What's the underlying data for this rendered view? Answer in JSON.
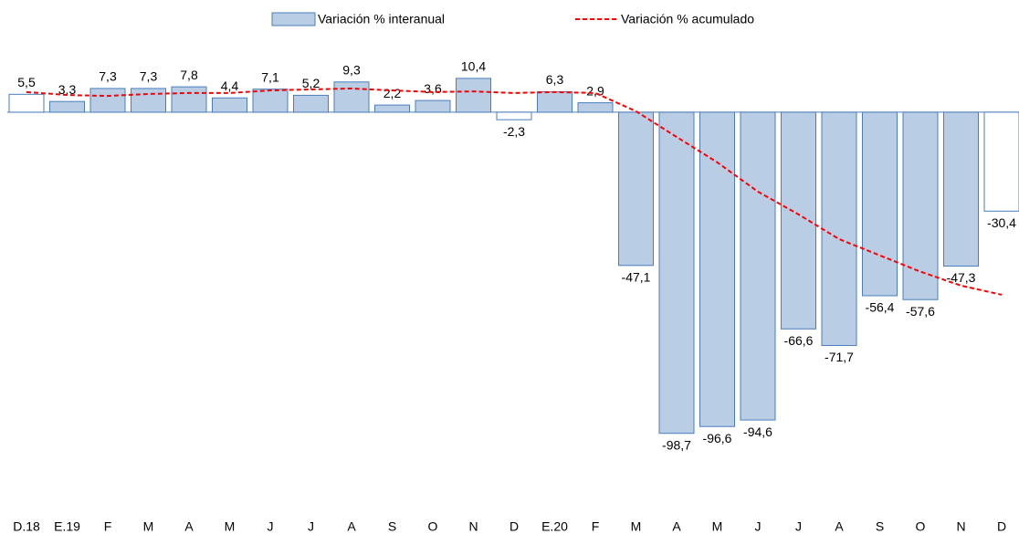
{
  "chart_data": {
    "type": "bar",
    "categories": [
      "D.18",
      "E.19",
      "F",
      "M",
      "A",
      "M",
      "J",
      "J",
      "A",
      "S",
      "O",
      "N",
      "D",
      "E.20",
      "F",
      "M",
      "A",
      "M",
      "J",
      "J",
      "A",
      "S",
      "O",
      "N",
      "D"
    ],
    "series": [
      {
        "name": "Variación % interanual",
        "type": "bar",
        "color": "#b9cde5",
        "edge_color": "#4a7ebb",
        "point_colors": [
          "#ffffff",
          "#b9cde5",
          "#b9cde5",
          "#b9cde5",
          "#b9cde5",
          "#b9cde5",
          "#b9cde5",
          "#b9cde5",
          "#b9cde5",
          "#b9cde5",
          "#b9cde5",
          "#b9cde5",
          "#ffffff",
          "#b9cde5",
          "#b9cde5",
          "#b9cde5",
          "#b9cde5",
          "#b9cde5",
          "#b9cde5",
          "#b9cde5",
          "#b9cde5",
          "#b9cde5",
          "#b9cde5",
          "#b9cde5",
          "#ffffff"
        ],
        "values": [
          5.5,
          3.3,
          7.3,
          7.3,
          7.8,
          4.4,
          7.1,
          5.2,
          9.3,
          2.2,
          3.6,
          10.4,
          -2.3,
          6.3,
          2.9,
          -47.1,
          -98.7,
          -96.6,
          -94.6,
          -66.6,
          -71.7,
          -56.4,
          -57.6,
          -47.3,
          -30.4
        ],
        "value_labels": [
          "5,5",
          "3,3",
          "7,3",
          "7,3",
          "7,8",
          "4,4",
          "7,1",
          "5,2",
          "9,3",
          "2,2",
          "3,6",
          "10,4",
          "-2,3",
          "6,3",
          "2,9",
          "-47,1",
          "-98,7",
          "-96,6",
          "-94,6",
          "-66,6",
          "-71,7",
          "-56,4",
          "-57,6",
          "-47,3",
          "-30,4"
        ]
      },
      {
        "name": "Variación % acumulado",
        "type": "line",
        "color": "#ff0000",
        "dashed": true,
        "values": [
          6.2,
          5.3,
          5.0,
          5.6,
          5.9,
          5.9,
          6.7,
          7.0,
          7.3,
          6.7,
          6.2,
          6.4,
          5.9,
          6.2,
          5.9,
          0.3,
          -7.6,
          -15.4,
          -24.4,
          -31.4,
          -39.0,
          -44.0,
          -49.0,
          -53.3,
          -56.1
        ]
      }
    ],
    "ylim": [
      -110,
      13
    ],
    "legend": "top"
  }
}
